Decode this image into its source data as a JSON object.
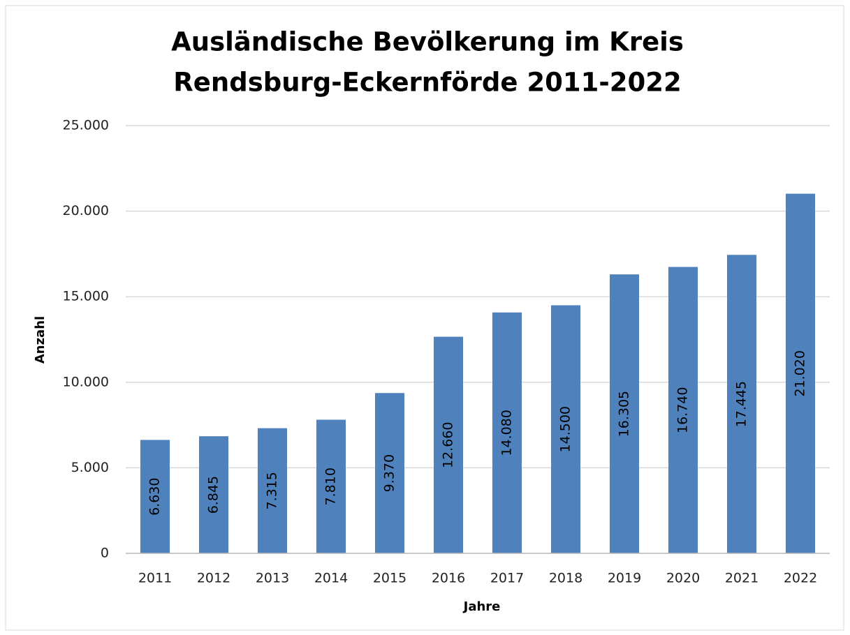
{
  "chart_data": {
    "type": "bar",
    "title": [
      "Ausländische Bevölkerung im Kreis",
      "Rendsburg-Eckernförde 2011-2022"
    ],
    "x_label": "Jahre",
    "y_label": "Anzahl",
    "categories": [
      "2011",
      "2012",
      "2013",
      "2014",
      "2015",
      "2016",
      "2017",
      "2018",
      "2019",
      "2020",
      "2021",
      "2022"
    ],
    "values": [
      6630,
      6845,
      7315,
      7810,
      9370,
      12660,
      14080,
      14500,
      16305,
      16740,
      17445,
      21020
    ],
    "value_labels": [
      "6.630",
      "6.845",
      "7.315",
      "7.810",
      "9.370",
      "12.660",
      "14.080",
      "14.500",
      "16.305",
      "16.740",
      "17.445",
      "21.020"
    ],
    "color": "#4f81bd",
    "ylim": [
      0,
      25000
    ],
    "yticks": [
      0,
      {
        "value": 5000,
        "label": "5.000"
      },
      {
        "value": 10000,
        "label": "10.000"
      },
      {
        "value": 15000,
        "label": "15.000"
      },
      {
        "value": 20000,
        "label": "20.000"
      },
      {
        "value": 25000,
        "label": "25.000"
      }
    ],
    "grid": true
  }
}
